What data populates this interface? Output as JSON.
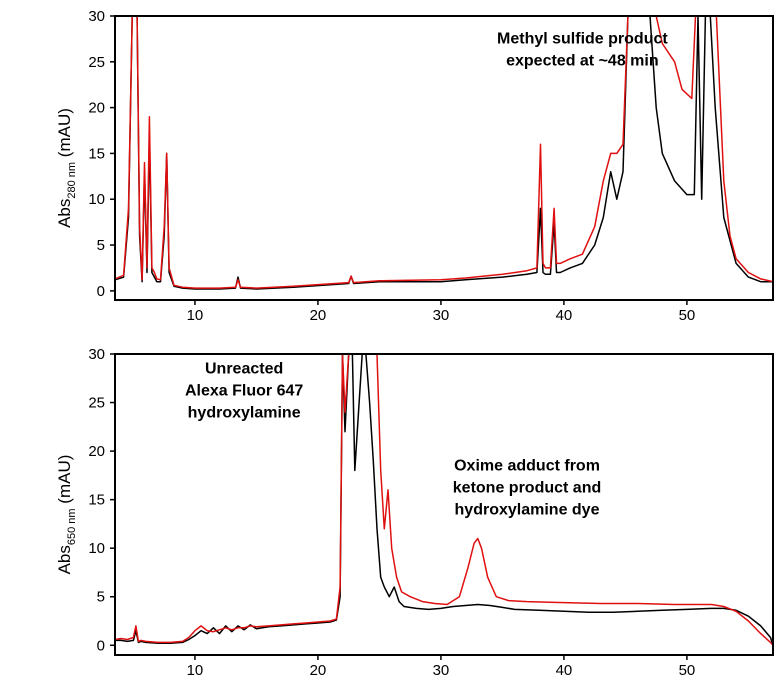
{
  "colors": {
    "trace_a": "#000000",
    "trace_b": "#e01010"
  },
  "chart_data": [
    {
      "type": "line",
      "title": "",
      "ylabel": {
        "main": "Abs",
        "sub": "280 nm",
        "unit": "(mAU)"
      },
      "xlim": [
        3.5,
        57
      ],
      "ylim": [
        -1,
        30
      ],
      "yticks": [
        0,
        5,
        10,
        15,
        20,
        25,
        30
      ],
      "xticks": [
        10,
        20,
        30,
        40,
        50
      ],
      "grid": false,
      "annotations": [
        {
          "lines": [
            "Methyl sulfide product",
            "expected at ~48 min"
          ],
          "x": 41.5,
          "y": 27
        }
      ],
      "series": [
        {
          "color": "#000000",
          "x": [
            3.5,
            4.2,
            4.6,
            4.9,
            5.1,
            5.3,
            5.5,
            5.7,
            5.9,
            6.1,
            6.3,
            6.5,
            6.7,
            6.9,
            7.2,
            7.5,
            7.7,
            7.9,
            8.3,
            9,
            10,
            12,
            13.3,
            13.5,
            13.7,
            15,
            18,
            22.5,
            22.7,
            22.9,
            25,
            30,
            32,
            35,
            37,
            37.8,
            38.1,
            38.3,
            38.5,
            38.9,
            39.2,
            39.4,
            39.7,
            40.5,
            41.5,
            42.5,
            43.2,
            43.8,
            44.3,
            44.8,
            45.2,
            45.6,
            45.9,
            46.3,
            47,
            47.5,
            48,
            49,
            50,
            50.6,
            50.9,
            51.2,
            51.5,
            51.9,
            52.3,
            53,
            54,
            55,
            56,
            57
          ],
          "y": [
            1.2,
            1.5,
            8,
            30,
            30,
            30,
            6,
            1,
            13,
            2,
            17,
            2,
            1.5,
            1,
            1,
            6,
            15,
            2,
            0.5,
            0.3,
            0.2,
            0.2,
            0.3,
            1.5,
            0.3,
            0.2,
            0.4,
            0.8,
            1.6,
            0.8,
            1,
            1,
            1.2,
            1.5,
            1.8,
            2,
            9,
            2,
            1.8,
            1.8,
            7.5,
            2,
            2,
            2.5,
            3,
            5,
            8,
            13,
            10,
            13,
            30,
            30,
            30,
            30,
            30,
            20,
            15,
            12,
            10.5,
            10.5,
            30,
            10,
            30,
            30,
            20,
            8,
            3,
            1.5,
            1,
            1
          ]
        },
        {
          "color": "#e01010",
          "x": [
            3.5,
            4.2,
            4.6,
            4.9,
            5.1,
            5.3,
            5.5,
            5.7,
            5.9,
            6.1,
            6.3,
            6.5,
            6.7,
            6.9,
            7.2,
            7.5,
            7.7,
            7.9,
            8.3,
            9,
            10,
            12,
            13.3,
            13.5,
            13.7,
            15,
            18,
            22.5,
            22.7,
            22.9,
            25,
            30,
            32,
            35,
            37,
            37.8,
            38.1,
            38.3,
            38.5,
            38.9,
            39.2,
            39.4,
            39.7,
            40.5,
            41.5,
            42.5,
            43.2,
            43.8,
            44.3,
            44.8,
            45.2,
            45.6,
            45.9,
            46.3,
            47,
            47.5,
            48,
            49,
            49.6,
            50,
            50.4,
            50.7,
            51,
            51.4,
            51.9,
            52.4,
            53,
            53.5,
            54,
            55,
            56,
            57
          ],
          "y": [
            1.3,
            1.7,
            9,
            30,
            30,
            30,
            7,
            1.2,
            14,
            2.5,
            19,
            2.5,
            2,
            1.3,
            1.2,
            7,
            15,
            2.5,
            0.6,
            0.4,
            0.3,
            0.3,
            0.4,
            1.2,
            0.4,
            0.3,
            0.5,
            0.9,
            1.6,
            0.9,
            1.1,
            1.2,
            1.4,
            1.8,
            2.2,
            2.5,
            16,
            3,
            2.5,
            2.5,
            9,
            3,
            3,
            3.5,
            4,
            7,
            12,
            15,
            15,
            16,
            30,
            30,
            30,
            30,
            30,
            30,
            27,
            25,
            22,
            21.5,
            21,
            30,
            30,
            30,
            30,
            30,
            12,
            6,
            3.5,
            2,
            1.3,
            1
          ]
        }
      ]
    },
    {
      "type": "line",
      "title": "",
      "ylabel": {
        "main": "Abs",
        "sub": "650 nm",
        "unit": "(mAU)"
      },
      "xlim": [
        3.5,
        57
      ],
      "ylim": [
        -1,
        30
      ],
      "yticks": [
        0,
        5,
        10,
        15,
        20,
        25,
        30
      ],
      "xticks": [
        10,
        20,
        30,
        40,
        50
      ],
      "grid": false,
      "annotations": [
        {
          "lines": [
            "Unreacted",
            "Alexa Fluor 647",
            "hydroxylamine"
          ],
          "x": 14,
          "y": 28
        },
        {
          "lines": [
            "Oxime adduct from",
            "ketone product and",
            "hydroxylamine dye"
          ],
          "x": 37,
          "y": 18
        }
      ],
      "series": [
        {
          "color": "#000000",
          "x": [
            3.5,
            4,
            4.5,
            5,
            5.2,
            5.4,
            5.6,
            6,
            7,
            8,
            9,
            9.5,
            10,
            10.5,
            11,
            11.5,
            12,
            12.5,
            13,
            13.5,
            14,
            14.5,
            15,
            16,
            17,
            18,
            19,
            20,
            21,
            21.5,
            21.8,
            22,
            22.2,
            22.5,
            22.8,
            23,
            23.3,
            23.6,
            23.9,
            24.2,
            24.5,
            24.8,
            25.1,
            25.4,
            25.8,
            26.2,
            26.6,
            27,
            28,
            29,
            30,
            31,
            32,
            33,
            34,
            35,
            36,
            38,
            40,
            42,
            44,
            46,
            48,
            50,
            52,
            53,
            54,
            55,
            56,
            56.8,
            57
          ],
          "y": [
            0.5,
            0.5,
            0.4,
            0.5,
            1.5,
            0.3,
            0.4,
            0.3,
            0.2,
            0.2,
            0.3,
            0.6,
            1,
            1.5,
            1.2,
            1.8,
            1.2,
            2,
            1.4,
            2,
            1.6,
            2.1,
            1.7,
            1.9,
            2,
            2.1,
            2.2,
            2.3,
            2.4,
            2.6,
            5,
            30,
            22,
            30,
            30,
            18,
            24,
            30,
            30,
            25,
            19,
            12,
            7,
            6,
            5,
            6,
            4.5,
            4,
            3.8,
            3.7,
            3.8,
            4,
            4.1,
            4.2,
            4.1,
            3.9,
            3.7,
            3.6,
            3.5,
            3.4,
            3.4,
            3.5,
            3.6,
            3.7,
            3.8,
            3.8,
            3.6,
            3,
            2,
            0.8,
            0
          ]
        },
        {
          "color": "#e01010",
          "x": [
            3.5,
            4,
            4.5,
            5,
            5.2,
            5.4,
            5.6,
            6,
            7,
            8,
            9,
            9.5,
            10,
            10.5,
            11,
            11.5,
            12,
            12.5,
            13,
            13.5,
            14,
            14.5,
            15,
            16,
            17,
            18,
            19,
            20,
            21,
            21.5,
            21.8,
            22,
            22.2,
            22.5,
            22.8,
            23,
            23.3,
            23.6,
            23.9,
            24.2,
            24.5,
            24.8,
            25.1,
            25.4,
            25.7,
            26,
            26.4,
            26.8,
            27.5,
            28.5,
            29.5,
            30.5,
            31.5,
            32.2,
            32.7,
            33,
            33.3,
            33.8,
            34.5,
            35.5,
            37,
            40,
            43,
            46,
            49,
            52,
            53,
            54,
            55,
            56,
            56.8,
            57
          ],
          "y": [
            0.6,
            0.7,
            0.6,
            0.8,
            2,
            0.4,
            0.5,
            0.4,
            0.3,
            0.3,
            0.4,
            0.8,
            1.5,
            2,
            1.5,
            1.4,
            1.6,
            1.8,
            1.6,
            1.8,
            1.8,
            2,
            1.9,
            2,
            2.1,
            2.2,
            2.3,
            2.4,
            2.5,
            2.7,
            6,
            30,
            24,
            30,
            30,
            30,
            30,
            30,
            30,
            30,
            30,
            30,
            18,
            12,
            16,
            10,
            7,
            5.5,
            5,
            4.5,
            4.3,
            4.2,
            5,
            8,
            10.5,
            11,
            10,
            7,
            5,
            4.6,
            4.5,
            4.4,
            4.3,
            4.3,
            4.2,
            4.2,
            4,
            3.5,
            2.5,
            1.2,
            0.3,
            0
          ]
        }
      ]
    }
  ]
}
